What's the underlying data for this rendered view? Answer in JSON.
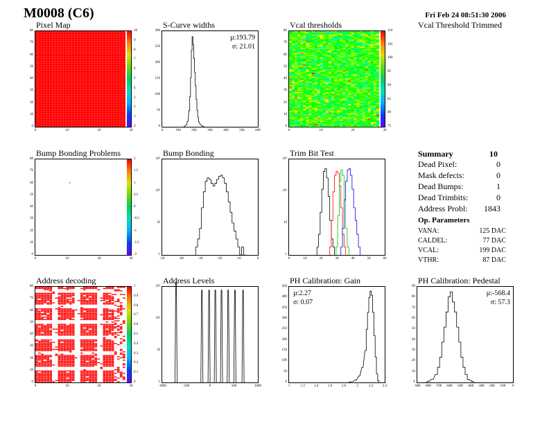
{
  "header": {
    "module": "M0008 (C6)",
    "date": "Fri Feb 24 08:51:30 2006",
    "trimmed_label": "Vcal Threshold Trimmed"
  },
  "panel_titles": {
    "pixel_map": "Pixel Map",
    "scurve": "S-Curve widths",
    "vcal": "Vcal thresholds",
    "bump_problems": "Bump Bonding Problems",
    "bump": "Bump Bonding",
    "trim": "Trim Bit Test",
    "addr_decoding": "Address decoding",
    "addr_levels": "Address Levels",
    "ph_gain": "PH Calibration: Gain",
    "ph_pedestal": "PH Calibration: Pedestal"
  },
  "stats": {
    "scurve_mu": "µ:193.79",
    "scurve_sigma": "σ: 21.01",
    "gain_mu": "µ:2.27",
    "gain_sigma": "σ: 0.07",
    "ped_mu": "µ:-568.4",
    "ped_sigma": "σ: 57.3"
  },
  "summary": {
    "title": "Summary",
    "total": "10",
    "rows": [
      {
        "label": "Dead Pixel:",
        "value": "0"
      },
      {
        "label": "Mask defects:",
        "value": "0"
      },
      {
        "label": "Dead Bumps:",
        "value": "1"
      },
      {
        "label": "Dead Trimbits:",
        "value": "0"
      },
      {
        "label": "Address Probl:",
        "value": "1843"
      }
    ],
    "op_title": "Op. Parameters",
    "op_rows": [
      {
        "label": "VANA:",
        "value": "125 DAC"
      },
      {
        "label": "CALDEL:",
        "value": "77 DAC"
      },
      {
        "label": "VCAL:",
        "value": "199 DAC"
      },
      {
        "label": "VTHR:",
        "value": "87 DAC"
      }
    ]
  },
  "colors": {
    "red": "#ff0000",
    "cyan": "#00e0d0",
    "hist_line": "#000000",
    "trim_red": "#ff0000",
    "trim_green": "#00c000",
    "trim_blue": "#0000ff"
  },
  "chart_data": [
    {
      "id": "pixel_map",
      "type": "heatmap",
      "title": "Pixel Map",
      "xlim": [
        0,
        32
      ],
      "ylim": [
        0,
        80
      ],
      "x_ticks": [
        "0",
        "10",
        "20",
        "30"
      ],
      "y_ticks": [
        "0",
        "10",
        "20",
        "30",
        "40",
        "50",
        "60",
        "70",
        "80"
      ],
      "z_ticks": [
        "0",
        "1",
        "2",
        "3",
        "4",
        "5",
        "6",
        "7",
        "8",
        "9",
        "10"
      ],
      "uniform_value": 10
    },
    {
      "id": "scurve",
      "type": "bar",
      "title": "S-Curve widths",
      "xlim": [
        0,
        600
      ],
      "ylim": [
        0,
        350
      ],
      "x_ticks": [
        "0",
        "100",
        "200",
        "300",
        "400",
        "500",
        "600"
      ],
      "y_ticks": [
        "0",
        "50",
        "100",
        "150",
        "200",
        "250",
        "300"
      ],
      "x": [
        140,
        150,
        160,
        170,
        175,
        180,
        185,
        190,
        195,
        200,
        205,
        210,
        215,
        220,
        225,
        230,
        240,
        250,
        260
      ],
      "values": [
        2,
        6,
        20,
        60,
        110,
        180,
        280,
        330,
        300,
        250,
        200,
        150,
        100,
        60,
        35,
        18,
        8,
        3,
        1
      ]
    },
    {
      "id": "vcal",
      "type": "heatmap",
      "title": "Vcal thresholds",
      "xlim": [
        0,
        32
      ],
      "ylim": [
        0,
        80
      ],
      "x_ticks": [
        "0",
        "10",
        "20",
        "30"
      ],
      "y_ticks": [
        "0",
        "10",
        "20",
        "30",
        "40",
        "50",
        "60",
        "70",
        "80"
      ],
      "z_ticks": [
        "75",
        "80",
        "85",
        "90",
        "95",
        "100",
        "105",
        "110"
      ],
      "zlim": [
        75,
        110
      ]
    },
    {
      "id": "bump_problems",
      "type": "heatmap",
      "title": "Bump Bonding Problems",
      "xlim": [
        0,
        32
      ],
      "ylim": [
        0,
        80
      ],
      "x_ticks": [
        "0",
        "10",
        "20",
        "30"
      ],
      "y_ticks": [
        "0",
        "10",
        "20",
        "30",
        "40",
        "50",
        "60",
        "70",
        "80"
      ],
      "z_ticks": [
        "-2",
        "-1.5",
        "-1",
        "-0.5",
        "0",
        "0.5",
        "1",
        "1.5",
        "2"
      ],
      "points": [
        [
          12,
          61
        ]
      ]
    },
    {
      "id": "bump",
      "type": "bar",
      "title": "Bump Bonding",
      "xlim": [
        -50,
        0
      ],
      "log_y": true,
      "x_ticks": [
        "-50",
        "-40",
        "-30",
        "-20",
        "-10",
        "0"
      ],
      "y_ticks": [
        "1",
        "10",
        "10²",
        "10³"
      ],
      "x": [
        -32,
        -31,
        -30,
        -29,
        -28,
        -27,
        -26,
        -25,
        -24,
        -23,
        -22,
        -21,
        -20,
        -19,
        -18,
        -17,
        -16,
        -15,
        -14,
        -13,
        -12,
        -11,
        -10,
        -9,
        -8,
        -7
      ],
      "values": [
        1,
        2,
        5,
        30,
        120,
        300,
        400,
        350,
        250,
        200,
        250,
        350,
        450,
        500,
        400,
        250,
        120,
        50,
        20,
        8,
        4,
        2,
        1,
        0,
        1,
        0
      ]
    },
    {
      "id": "trim",
      "type": "line",
      "title": "Trim Bit Test",
      "xlim": [
        0,
        60
      ],
      "log_y": true,
      "x_ticks": [
        "0",
        "10",
        "20",
        "30",
        "40",
        "50",
        "60"
      ],
      "y_ticks": [
        "1",
        "10",
        "10²",
        "10³"
      ],
      "series": [
        {
          "color": "#000000",
          "x": [
            18,
            19,
            20,
            21,
            22,
            23,
            24,
            25,
            26,
            27,
            28
          ],
          "values": [
            1,
            3,
            20,
            150,
            700,
            900,
            400,
            80,
            10,
            2,
            1
          ]
        },
        {
          "color": "#ff0000",
          "x": [
            26,
            27,
            28,
            29,
            30,
            31,
            32,
            33,
            34,
            35
          ],
          "values": [
            1,
            10,
            120,
            500,
            700,
            600,
            200,
            30,
            3,
            1
          ]
        },
        {
          "color": "#00c000",
          "x": [
            30,
            31,
            32,
            33,
            34,
            35,
            36,
            37
          ],
          "values": [
            1,
            15,
            300,
            800,
            500,
            60,
            5,
            1
          ]
        },
        {
          "color": "#0000ff",
          "x": [
            33,
            34,
            35,
            36,
            37,
            38,
            39,
            40,
            41,
            42,
            43,
            44
          ],
          "values": [
            1,
            5,
            60,
            300,
            800,
            900,
            500,
            150,
            30,
            10,
            3,
            1
          ]
        }
      ]
    },
    {
      "id": "addr_decoding",
      "type": "heatmap",
      "title": "Address decoding",
      "xlim": [
        0,
        32
      ],
      "ylim": [
        0,
        80
      ],
      "x_ticks": [
        "0",
        "10",
        "20",
        "30"
      ],
      "y_ticks": [
        "0",
        "10",
        "20",
        "30",
        "40",
        "50",
        "60",
        "70",
        "80"
      ],
      "z_ticks": [
        "0",
        "0.1",
        "0.2",
        "0.3",
        "0.4",
        "0.5",
        "0.6",
        "0.7",
        "0.8",
        "0.9",
        "1"
      ]
    },
    {
      "id": "addr_levels",
      "type": "bar",
      "title": "Address Levels",
      "xlim": [
        -1000,
        1000
      ],
      "log_y": true,
      "x_ticks": [
        "-1000",
        "-500",
        "0",
        "500",
        "1000"
      ],
      "y_ticks": [
        "1",
        "10",
        "10²",
        "10³"
      ],
      "x": [
        -710,
        -170,
        -20,
        110,
        240,
        380,
        520,
        690
      ],
      "values": [
        3000,
        1500,
        1500,
        1500,
        1500,
        1500,
        1500,
        1500
      ]
    },
    {
      "id": "ph_gain",
      "type": "bar",
      "title": "PH Calibration: Gain",
      "xlim": [
        1,
        2.5
      ],
      "ylim": [
        0,
        450
      ],
      "x_ticks": [
        "1",
        "1.2",
        "1.4",
        "1.6",
        "1.8",
        "2",
        "2.2",
        "2.4"
      ],
      "y_ticks": [
        "0",
        "50",
        "100",
        "150",
        "200",
        "250",
        "300",
        "350",
        "400",
        "450"
      ],
      "x": [
        1.95,
        2.0,
        2.05,
        2.1,
        2.15,
        2.2,
        2.22,
        2.24,
        2.26,
        2.28,
        2.3,
        2.32,
        2.34,
        2.36,
        2.38,
        2.4
      ],
      "values": [
        2,
        5,
        12,
        30,
        70,
        150,
        250,
        330,
        400,
        430,
        410,
        330,
        220,
        120,
        40,
        8
      ]
    },
    {
      "id": "ph_pedestal",
      "type": "bar",
      "title": "PH Calibration: Pedestal",
      "xlim": [
        -900,
        0
      ],
      "ylim": [
        0,
        95
      ],
      "x_ticks": [
        "-900",
        "-800",
        "-700",
        "-600",
        "-500",
        "-400",
        "-300",
        "-200",
        "-100",
        "0"
      ],
      "y_ticks": [
        "0",
        "10",
        "20",
        "30",
        "40",
        "50",
        "60",
        "70",
        "80",
        "90"
      ],
      "x": [
        -800,
        -760,
        -720,
        -700,
        -680,
        -660,
        -640,
        -620,
        -600,
        -580,
        -560,
        -540,
        -520,
        -500,
        -480,
        -460,
        -440,
        -420,
        -400,
        -380
      ],
      "values": [
        1,
        3,
        8,
        15,
        25,
        40,
        55,
        70,
        85,
        90,
        80,
        70,
        55,
        40,
        25,
        15,
        8,
        3,
        2,
        1
      ]
    }
  ]
}
